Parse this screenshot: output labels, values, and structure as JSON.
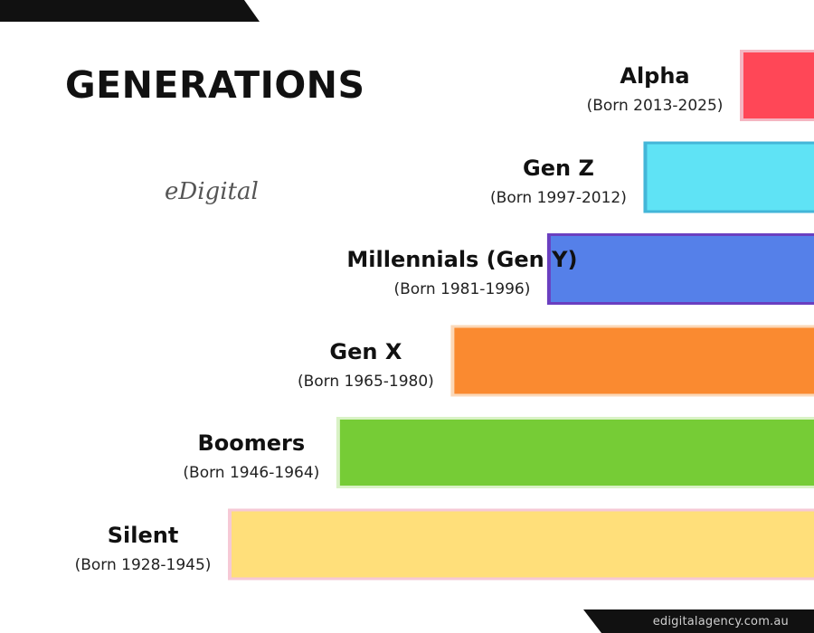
{
  "title": "GENERATIONS",
  "logo_text": "eDigital",
  "footer_url": "edigitalagency.com.au",
  "chart_data": {
    "type": "bar",
    "orientation": "horizontal",
    "title": "GENERATIONS",
    "x_axis_shown": false,
    "grid": false,
    "legend": "none",
    "value_unit": "birth year",
    "categories": [
      "Alpha",
      "Gen Z",
      "Millennials (Gen Y)",
      "Gen X",
      "Boomers",
      "Silent"
    ],
    "born_labels": [
      "(Born 2013-2025)",
      "(Born 1997-2012)",
      "(Born 1981-1996)",
      "(Born 1965-1980)",
      "(Born 1946-1964)",
      "(Born 1928-1945)"
    ],
    "born_start": [
      2013,
      1997,
      1981,
      1965,
      1946,
      1928
    ],
    "born_end": [
      2025,
      2012,
      1996,
      1980,
      1964,
      1945
    ],
    "colors": [
      "#ff4757",
      "#5fe3f5",
      "#5580e9",
      "#fa8a30",
      "#76cc36",
      "#ffdf7a"
    ],
    "accent_colors": [
      "#f4b6c2",
      "#43b6d8",
      "#6a3fc0",
      "#fbd8b8",
      "#d9f2c6",
      "#f6c9d6"
    ]
  }
}
